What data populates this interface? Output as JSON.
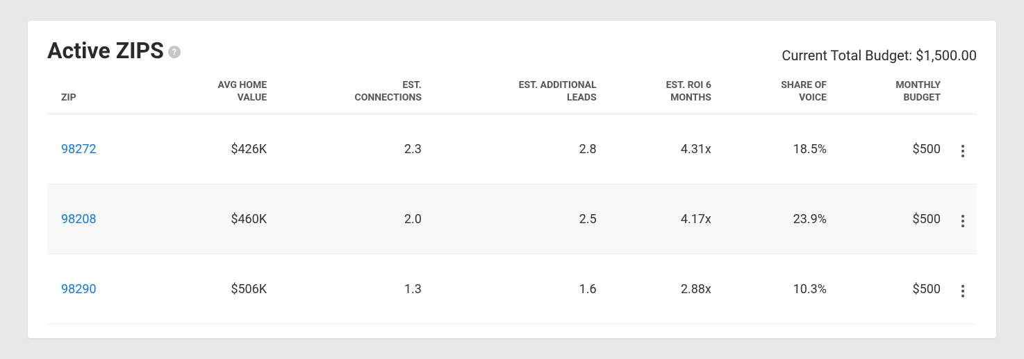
{
  "header": {
    "title": "Active ZIPS",
    "help_glyph": "?",
    "budget_label": "Current Total Budget: $1,500.00"
  },
  "table": {
    "columns": {
      "zip": "ZIP",
      "avg_home_value": "AVG HOME VALUE",
      "est_connections": "EST. CONNECTIONS",
      "est_additional_leads": "EST. ADDITIONAL LEADS",
      "est_roi_6_months": "EST. ROI 6 MONTHS",
      "share_of_voice": "SHARE OF VOICE",
      "monthly_budget": "MONTHLY BUDGET"
    },
    "rows": [
      {
        "zip": "98272",
        "avg_home_value": "$426K",
        "est_connections": "2.3",
        "est_additional_leads": "2.8",
        "est_roi_6_months": "4.31x",
        "share_of_voice": "18.5%",
        "monthly_budget": "$500"
      },
      {
        "zip": "98208",
        "avg_home_value": "$460K",
        "est_connections": "2.0",
        "est_additional_leads": "2.5",
        "est_roi_6_months": "4.17x",
        "share_of_voice": "23.9%",
        "monthly_budget": "$500"
      },
      {
        "zip": "98290",
        "avg_home_value": "$506K",
        "est_connections": "1.3",
        "est_additional_leads": "1.6",
        "est_roi_6_months": "2.88x",
        "share_of_voice": "10.3%",
        "monthly_budget": "$500"
      }
    ]
  },
  "colors": {
    "page_bg": "#e8e8e8",
    "card_bg": "#ffffff",
    "title_color": "#2a2a2a",
    "header_text": "#555555",
    "cell_text": "#333333",
    "link_color": "#1277e1",
    "row_alt_bg": "#f8f8f8",
    "border_color": "#e5e5e5",
    "help_bg": "#c6c6c6"
  }
}
